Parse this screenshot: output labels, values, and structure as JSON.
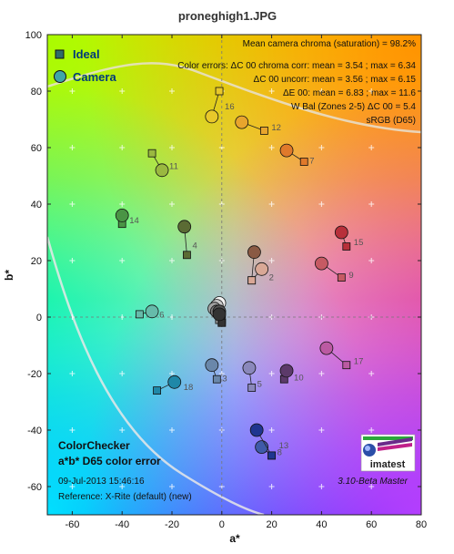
{
  "chart_data": {
    "type": "scatter",
    "title": "proneghigh1.JPG",
    "xlabel": "a*",
    "ylabel": "b*",
    "xlim": [
      -70,
      80
    ],
    "ylim": [
      -70,
      100
    ],
    "xticks": [
      -60,
      -40,
      -20,
      0,
      20,
      40,
      60,
      80
    ],
    "yticks": [
      -60,
      -40,
      -20,
      0,
      20,
      40,
      60,
      80,
      100
    ],
    "grid": false,
    "legend_position": "top-left",
    "legend": [
      {
        "label": "Ideal",
        "marker": "square"
      },
      {
        "label": "Camera",
        "marker": "circle"
      }
    ],
    "stats": [
      "Mean camera chroma (saturation) = 98.2%",
      "Color errors: ΔC 00 chroma corr:  mean = 3.54 ;  max = 6.34",
      "ΔC 00 uncorr:  mean = 3.56 ;  max = 6.15",
      "ΔE 00:  mean = 6.83 ;  max = 11.6",
      "W Bal (Zones 2-5) ΔC 00 = 5.4",
      "sRGB (D65)"
    ],
    "bottom_title": [
      "ColorChecker",
      "a*b* D65 color error"
    ],
    "date_text": "09-Jul-2013 15:46:16",
    "reference_text": "Reference: X-Rite (default) (new)",
    "version_text": "3.10-Beta  Master",
    "logo_text": "imatest",
    "patches": [
      {
        "id": "1",
        "ideal": [
          12,
          13
        ],
        "camera": [
          13,
          23
        ],
        "color": "#8a5a44"
      },
      {
        "id": "2",
        "ideal": [
          12,
          13
        ],
        "camera": [
          16,
          17
        ],
        "color": "#d9a896"
      },
      {
        "id": "3",
        "ideal": [
          -2,
          -22
        ],
        "camera": [
          -4,
          -17
        ],
        "color": "#6a87aa"
      },
      {
        "id": "4",
        "ideal": [
          -14,
          22
        ],
        "camera": [
          -15,
          32
        ],
        "color": "#5b6b34"
      },
      {
        "id": "5",
        "ideal": [
          12,
          -25
        ],
        "camera": [
          11,
          -18
        ],
        "color": "#8a88bb"
      },
      {
        "id": "6",
        "ideal": [
          -33,
          1
        ],
        "camera": [
          -28,
          2
        ],
        "color": "#66bbaa"
      },
      {
        "id": "7",
        "ideal": [
          33,
          55
        ],
        "camera": [
          26,
          59
        ],
        "color": "#e07a2b"
      },
      {
        "id": "8",
        "ideal": [
          20,
          -49
        ],
        "camera": [
          16,
          -46
        ],
        "color": "#3f5aa8"
      },
      {
        "id": "9",
        "ideal": [
          48,
          14
        ],
        "camera": [
          40,
          19
        ],
        "color": "#c65a63"
      },
      {
        "id": "10",
        "ideal": [
          25,
          -22
        ],
        "camera": [
          26,
          -19
        ],
        "color": "#5c3a6a"
      },
      {
        "id": "11",
        "ideal": [
          -28,
          58
        ],
        "camera": [
          -24,
          52
        ],
        "color": "#9ab840"
      },
      {
        "id": "12",
        "ideal": [
          17,
          66
        ],
        "camera": [
          8,
          69
        ],
        "color": "#e8a52d"
      },
      {
        "id": "13",
        "ideal": [
          20,
          -49
        ],
        "camera": [
          14,
          -40
        ],
        "color": "#1f3590"
      },
      {
        "id": "14",
        "ideal": [
          -40,
          33
        ],
        "camera": [
          -40,
          36
        ],
        "color": "#4a9445"
      },
      {
        "id": "15",
        "ideal": [
          50,
          25
        ],
        "camera": [
          48,
          30
        ],
        "color": "#b8303a"
      },
      {
        "id": "16",
        "ideal": [
          -1,
          80
        ],
        "camera": [
          -4,
          71
        ],
        "color": "#e8c82a"
      },
      {
        "id": "17",
        "ideal": [
          50,
          -17
        ],
        "camera": [
          42,
          -11
        ],
        "color": "#bb5aa2"
      },
      {
        "id": "18",
        "ideal": [
          -26,
          -26
        ],
        "camera": [
          -19,
          -23
        ],
        "color": "#1f88a8"
      },
      {
        "id": "w1",
        "ideal": [
          -1,
          0
        ],
        "camera": [
          -1,
          5
        ],
        "color": "#f4f4f4"
      },
      {
        "id": "w2",
        "ideal": [
          -1,
          -1
        ],
        "camera": [
          -2,
          4
        ],
        "color": "#c7c7c7"
      },
      {
        "id": "w3",
        "ideal": [
          -1,
          -1
        ],
        "camera": [
          -3,
          3
        ],
        "color": "#a0a0a0"
      },
      {
        "id": "w4",
        "ideal": [
          0,
          -1
        ],
        "camera": [
          -2,
          2
        ],
        "color": "#7a7a7a"
      },
      {
        "id": "w5",
        "ideal": [
          0,
          -2
        ],
        "camera": [
          -1,
          2
        ],
        "color": "#555555"
      },
      {
        "id": "w6",
        "ideal": [
          0,
          -2
        ],
        "camera": [
          -1,
          1
        ],
        "color": "#333333"
      }
    ]
  }
}
